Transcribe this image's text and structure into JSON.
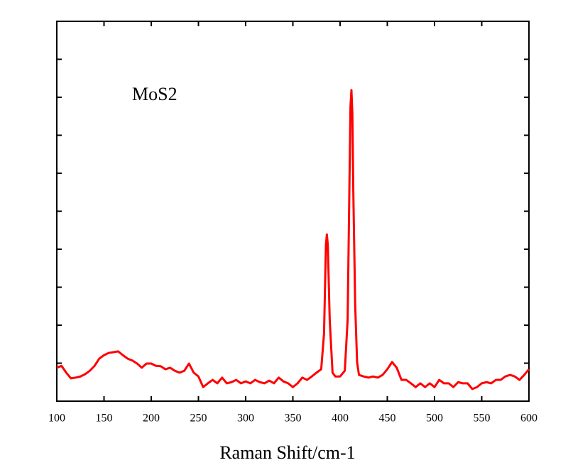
{
  "chart_data": {
    "type": "line",
    "xlabel": "Raman Shift/cm-1",
    "annotation": "MoS2",
    "xlim": [
      100,
      600
    ],
    "xticks": [
      100,
      150,
      200,
      250,
      300,
      350,
      400,
      450,
      500,
      550,
      600
    ],
    "ylim": [
      0,
      10
    ],
    "yticks": [
      1,
      2,
      3,
      4,
      5,
      6,
      7,
      8,
      9
    ],
    "x": [
      100,
      105,
      110,
      115,
      120,
      125,
      130,
      135,
      140,
      145,
      150,
      155,
      160,
      165,
      170,
      175,
      180,
      185,
      190,
      195,
      200,
      205,
      210,
      215,
      220,
      225,
      230,
      235,
      240,
      245,
      250,
      255,
      260,
      265,
      270,
      275,
      280,
      285,
      290,
      295,
      300,
      305,
      310,
      315,
      320,
      325,
      330,
      335,
      340,
      345,
      350,
      355,
      360,
      365,
      370,
      375,
      380,
      383,
      385,
      386,
      387,
      389,
      392,
      395,
      400,
      405,
      408,
      410,
      411,
      412,
      413,
      414,
      416,
      418,
      420,
      425,
      430,
      435,
      440,
      445,
      450,
      455,
      460,
      465,
      470,
      475,
      480,
      485,
      490,
      495,
      500,
      505,
      510,
      515,
      520,
      525,
      530,
      535,
      540,
      545,
      550,
      555,
      560,
      565,
      570,
      575,
      580,
      585,
      590,
      595,
      600
    ],
    "series": [
      {
        "color": "#ff0000",
        "values": [
          0.88,
          0.93,
          0.75,
          0.6,
          0.62,
          0.65,
          0.71,
          0.8,
          0.93,
          1.12,
          1.21,
          1.27,
          1.29,
          1.31,
          1.21,
          1.12,
          1.07,
          0.99,
          0.88,
          0.99,
          0.99,
          0.93,
          0.92,
          0.84,
          0.88,
          0.8,
          0.75,
          0.8,
          0.99,
          0.75,
          0.65,
          0.37,
          0.47,
          0.56,
          0.47,
          0.62,
          0.47,
          0.5,
          0.56,
          0.47,
          0.52,
          0.47,
          0.56,
          0.5,
          0.47,
          0.54,
          0.47,
          0.62,
          0.52,
          0.47,
          0.37,
          0.47,
          0.62,
          0.56,
          0.65,
          0.75,
          0.84,
          1.78,
          4.11,
          4.39,
          4.11,
          2.15,
          0.75,
          0.65,
          0.65,
          0.8,
          2.15,
          5.89,
          7.76,
          8.19,
          7.57,
          5.51,
          2.52,
          1.03,
          0.69,
          0.65,
          0.62,
          0.65,
          0.62,
          0.69,
          0.84,
          1.03,
          0.88,
          0.56,
          0.56,
          0.47,
          0.37,
          0.47,
          0.37,
          0.47,
          0.37,
          0.56,
          0.47,
          0.47,
          0.37,
          0.5,
          0.47,
          0.47,
          0.32,
          0.37,
          0.47,
          0.5,
          0.47,
          0.56,
          0.56,
          0.65,
          0.69,
          0.65,
          0.56,
          0.69,
          0.84
        ]
      }
    ]
  }
}
